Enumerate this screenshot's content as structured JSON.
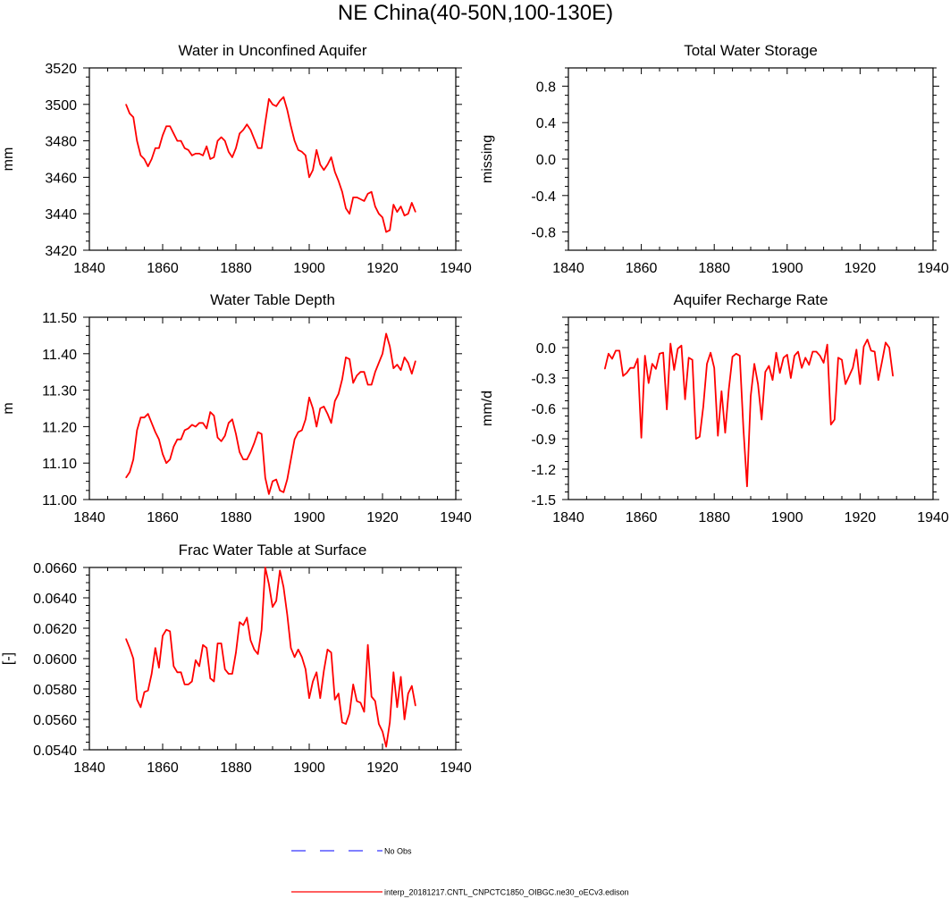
{
  "figure": {
    "title": "NE China(40-50N,100-130E)"
  },
  "legend": {
    "entries": [
      {
        "label": "No Obs",
        "color": "#0000ff",
        "style": "dashed"
      },
      {
        "label": "interp_20181217.CNTL_CNPCTC1850_OIBGC.ne30_oECv3.edison",
        "color": "#ff0000",
        "style": "solid"
      }
    ]
  },
  "chart_data": [
    {
      "id": "unconfined",
      "type": "line",
      "title": "Water in Unconfined Aquifer",
      "ylabel": "mm",
      "xlabel": "",
      "xlim": [
        1840,
        1940
      ],
      "ylim": [
        3420,
        3520
      ],
      "xticks": [
        1840,
        1860,
        1880,
        1900,
        1920,
        1940
      ],
      "yticks": [
        3420,
        3440,
        3460,
        3480,
        3500,
        3520
      ],
      "ytick_labels": [
        "3420",
        "3440",
        "3460",
        "3480",
        "3500",
        "3520"
      ],
      "series": [
        {
          "name": "interp_20181217.CNTL_CNPCTC1850_OIBGC.ne30_oECv3.edison",
          "color": "#ff0000",
          "x": [
            1850,
            1851,
            1852,
            1853,
            1854,
            1855,
            1856,
            1857,
            1858,
            1859,
            1860,
            1861,
            1862,
            1863,
            1864,
            1865,
            1866,
            1867,
            1868,
            1869,
            1870,
            1871,
            1872,
            1873,
            1874,
            1875,
            1876,
            1877,
            1878,
            1879,
            1880,
            1881,
            1882,
            1883,
            1884,
            1885,
            1886,
            1887,
            1888,
            1889,
            1890,
            1891,
            1892,
            1893,
            1894,
            1895,
            1896,
            1897,
            1898,
            1899,
            1900,
            1901,
            1902,
            1903,
            1904,
            1905,
            1906,
            1907,
            1908,
            1909,
            1910,
            1911,
            1912,
            1913,
            1914,
            1915,
            1916,
            1917,
            1918,
            1919,
            1920,
            1921,
            1922,
            1923,
            1924,
            1925,
            1926,
            1927,
            1928,
            1929
          ],
          "values": [
            3500,
            3495,
            3493,
            3480,
            3472,
            3470,
            3466,
            3470,
            3476,
            3476,
            3483,
            3488,
            3488,
            3484,
            3480,
            3480,
            3476,
            3475,
            3472,
            3473,
            3473,
            3472,
            3477,
            3470,
            3471,
            3480,
            3482,
            3480,
            3474,
            3471,
            3476,
            3484,
            3486,
            3489,
            3486,
            3481,
            3476,
            3476,
            3490,
            3503,
            3500,
            3499,
            3502,
            3504,
            3497,
            3488,
            3480,
            3475,
            3474,
            3472,
            3460,
            3464,
            3475,
            3467,
            3464,
            3467,
            3471,
            3463,
            3458,
            3452,
            3443,
            3440,
            3449,
            3449,
            3448,
            3447,
            3451,
            3452,
            3444,
            3440,
            3438,
            3430,
            3431,
            3445,
            3441,
            3444,
            3439,
            3440,
            3446,
            3441
          ]
        }
      ]
    },
    {
      "id": "tws",
      "type": "line",
      "title": "Total Water Storage",
      "ylabel": "missing",
      "xlabel": "",
      "xlim": [
        1840,
        1940
      ],
      "ylim": [
        -1.0,
        1.0
      ],
      "xticks": [
        1840,
        1860,
        1880,
        1900,
        1920,
        1940
      ],
      "yticks": [
        -0.8,
        -0.4,
        0.0,
        0.4,
        0.8
      ],
      "ytick_labels": [
        "-0.8",
        "-0.4",
        "0.0",
        "0.4",
        "0.8"
      ],
      "series": []
    },
    {
      "id": "wtd",
      "type": "line",
      "title": "Water Table Depth",
      "ylabel": "m",
      "xlabel": "",
      "xlim": [
        1840,
        1940
      ],
      "ylim": [
        11.0,
        11.5
      ],
      "xticks": [
        1840,
        1860,
        1880,
        1900,
        1920,
        1940
      ],
      "yticks": [
        11.0,
        11.1,
        11.2,
        11.3,
        11.4,
        11.5
      ],
      "ytick_labels": [
        "11.00",
        "11.10",
        "11.20",
        "11.30",
        "11.40",
        "11.50"
      ],
      "series": [
        {
          "name": "interp_20181217.CNTL_CNPCTC1850_OIBGC.ne30_oECv3.edison",
          "color": "#ff0000",
          "x": [
            1850,
            1851,
            1852,
            1853,
            1854,
            1855,
            1856,
            1857,
            1858,
            1859,
            1860,
            1861,
            1862,
            1863,
            1864,
            1865,
            1866,
            1867,
            1868,
            1869,
            1870,
            1871,
            1872,
            1873,
            1874,
            1875,
            1876,
            1877,
            1878,
            1879,
            1880,
            1881,
            1882,
            1883,
            1884,
            1885,
            1886,
            1887,
            1888,
            1889,
            1890,
            1891,
            1892,
            1893,
            1894,
            1895,
            1896,
            1897,
            1898,
            1899,
            1900,
            1901,
            1902,
            1903,
            1904,
            1905,
            1906,
            1907,
            1908,
            1909,
            1910,
            1911,
            1912,
            1913,
            1914,
            1915,
            1916,
            1917,
            1918,
            1919,
            1920,
            1921,
            1922,
            1923,
            1924,
            1925,
            1926,
            1927,
            1928,
            1929
          ],
          "values": [
            11.06,
            11.075,
            11.11,
            11.19,
            11.225,
            11.225,
            11.235,
            11.21,
            11.185,
            11.165,
            11.125,
            11.1,
            11.11,
            11.145,
            11.165,
            11.165,
            11.19,
            11.195,
            11.205,
            11.2,
            11.21,
            11.21,
            11.195,
            11.24,
            11.23,
            11.17,
            11.16,
            11.175,
            11.21,
            11.22,
            11.18,
            11.13,
            11.11,
            11.11,
            11.13,
            11.155,
            11.185,
            11.18,
            11.06,
            11.015,
            11.05,
            11.055,
            11.025,
            11.02,
            11.055,
            11.11,
            11.165,
            11.185,
            11.19,
            11.22,
            11.28,
            11.25,
            11.2,
            11.25,
            11.255,
            11.235,
            11.21,
            11.27,
            11.29,
            11.33,
            11.39,
            11.385,
            11.32,
            11.34,
            11.35,
            11.35,
            11.315,
            11.315,
            11.35,
            11.375,
            11.4,
            11.455,
            11.42,
            11.36,
            11.37,
            11.355,
            11.39,
            11.375,
            11.345,
            11.38
          ]
        }
      ]
    },
    {
      "id": "recharge",
      "type": "line",
      "title": "Aquifer Recharge Rate",
      "ylabel": "mm/d",
      "xlabel": "",
      "xlim": [
        1840,
        1940
      ],
      "ylim": [
        -1.5,
        0.3
      ],
      "xticks": [
        1840,
        1860,
        1880,
        1900,
        1920,
        1940
      ],
      "yticks": [
        -1.5,
        -1.2,
        -0.9,
        -0.6,
        -0.3,
        0.0
      ],
      "ytick_labels": [
        "-1.5",
        "-1.2",
        "-0.9",
        "-0.6",
        "-0.3",
        "0.0"
      ],
      "series": [
        {
          "name": "interp_20181217.CNTL_CNPCTC1850_OIBGC.ne30_oECv3.edison",
          "color": "#ff0000",
          "x": [
            1850,
            1851,
            1852,
            1853,
            1854,
            1855,
            1856,
            1857,
            1858,
            1859,
            1860,
            1861,
            1862,
            1863,
            1864,
            1865,
            1866,
            1867,
            1868,
            1869,
            1870,
            1871,
            1872,
            1873,
            1874,
            1875,
            1876,
            1877,
            1878,
            1879,
            1880,
            1881,
            1882,
            1883,
            1884,
            1885,
            1886,
            1887,
            1888,
            1889,
            1890,
            1891,
            1892,
            1893,
            1894,
            1895,
            1896,
            1897,
            1898,
            1899,
            1900,
            1901,
            1902,
            1903,
            1904,
            1905,
            1906,
            1907,
            1908,
            1909,
            1910,
            1911,
            1912,
            1913,
            1914,
            1915,
            1916,
            1917,
            1918,
            1919,
            1920,
            1921,
            1922,
            1923,
            1924,
            1925,
            1926,
            1927,
            1928,
            1929
          ],
          "values": [
            -0.21,
            -0.06,
            -0.11,
            -0.03,
            -0.03,
            -0.28,
            -0.25,
            -0.2,
            -0.2,
            -0.11,
            -0.89,
            -0.08,
            -0.35,
            -0.16,
            -0.21,
            -0.06,
            -0.05,
            -0.61,
            0.04,
            -0.22,
            -0.01,
            0.02,
            -0.51,
            -0.1,
            -0.12,
            -0.9,
            -0.88,
            -0.58,
            -0.16,
            -0.05,
            -0.2,
            -0.87,
            -0.43,
            -0.84,
            -0.41,
            -0.09,
            -0.06,
            -0.08,
            -0.8,
            -1.37,
            -0.48,
            -0.16,
            -0.36,
            -0.71,
            -0.24,
            -0.18,
            -0.32,
            -0.05,
            -0.25,
            -0.1,
            -0.07,
            -0.3,
            -0.08,
            -0.04,
            -0.2,
            -0.1,
            -0.17,
            -0.04,
            -0.04,
            -0.08,
            -0.15,
            0.03,
            -0.76,
            -0.71,
            -0.1,
            -0.12,
            -0.36,
            -0.28,
            -0.2,
            -0.02,
            -0.36,
            0.01,
            0.08,
            -0.03,
            -0.04,
            -0.32,
            -0.14,
            0.05,
            0.0,
            -0.28
          ]
        }
      ]
    },
    {
      "id": "frac",
      "type": "line",
      "title": "Frac Water Table at Surface",
      "ylabel": "[-]",
      "xlabel": "",
      "xlim": [
        1840,
        1940
      ],
      "ylim": [
        0.054,
        0.066
      ],
      "xticks": [
        1840,
        1860,
        1880,
        1900,
        1920,
        1940
      ],
      "yticks": [
        0.054,
        0.056,
        0.058,
        0.06,
        0.062,
        0.064,
        0.066
      ],
      "ytick_labels": [
        "0.0540",
        "0.0560",
        "0.0580",
        "0.0600",
        "0.0620",
        "0.0640",
        "0.0660"
      ],
      "series": [
        {
          "name": "interp_20181217.CNTL_CNPCTC1850_OIBGC.ne30_oECv3.edison",
          "color": "#ff0000",
          "x": [
            1850,
            1851,
            1852,
            1853,
            1854,
            1855,
            1856,
            1857,
            1858,
            1859,
            1860,
            1861,
            1862,
            1863,
            1864,
            1865,
            1866,
            1867,
            1868,
            1869,
            1870,
            1871,
            1872,
            1873,
            1874,
            1875,
            1876,
            1877,
            1878,
            1879,
            1880,
            1881,
            1882,
            1883,
            1884,
            1885,
            1886,
            1887,
            1888,
            1889,
            1890,
            1891,
            1892,
            1893,
            1894,
            1895,
            1896,
            1897,
            1898,
            1899,
            1900,
            1901,
            1902,
            1903,
            1904,
            1905,
            1906,
            1907,
            1908,
            1909,
            1910,
            1911,
            1912,
            1913,
            1914,
            1915,
            1916,
            1917,
            1918,
            1919,
            1920,
            1921,
            1922,
            1923,
            1924,
            1925,
            1926,
            1927,
            1928,
            1929
          ],
          "values": [
            0.0613,
            0.0607,
            0.06,
            0.0573,
            0.0568,
            0.0578,
            0.0579,
            0.059,
            0.0607,
            0.0594,
            0.0615,
            0.0619,
            0.0618,
            0.0595,
            0.0591,
            0.0591,
            0.0583,
            0.0583,
            0.0585,
            0.0599,
            0.0595,
            0.0609,
            0.0607,
            0.0587,
            0.0585,
            0.061,
            0.061,
            0.0593,
            0.059,
            0.059,
            0.0604,
            0.0624,
            0.0622,
            0.0627,
            0.0612,
            0.0606,
            0.0603,
            0.0619,
            0.066,
            0.0649,
            0.0634,
            0.0638,
            0.0658,
            0.0647,
            0.0629,
            0.0607,
            0.0601,
            0.0606,
            0.0601,
            0.0593,
            0.0574,
            0.0585,
            0.0591,
            0.0574,
            0.0592,
            0.0606,
            0.0604,
            0.0573,
            0.0577,
            0.0558,
            0.0557,
            0.0564,
            0.0583,
            0.0572,
            0.0571,
            0.0565,
            0.0609,
            0.0575,
            0.0572,
            0.0557,
            0.0552,
            0.0542,
            0.0558,
            0.0591,
            0.0568,
            0.0588,
            0.056,
            0.0577,
            0.0582,
            0.0569
          ]
        }
      ]
    }
  ]
}
